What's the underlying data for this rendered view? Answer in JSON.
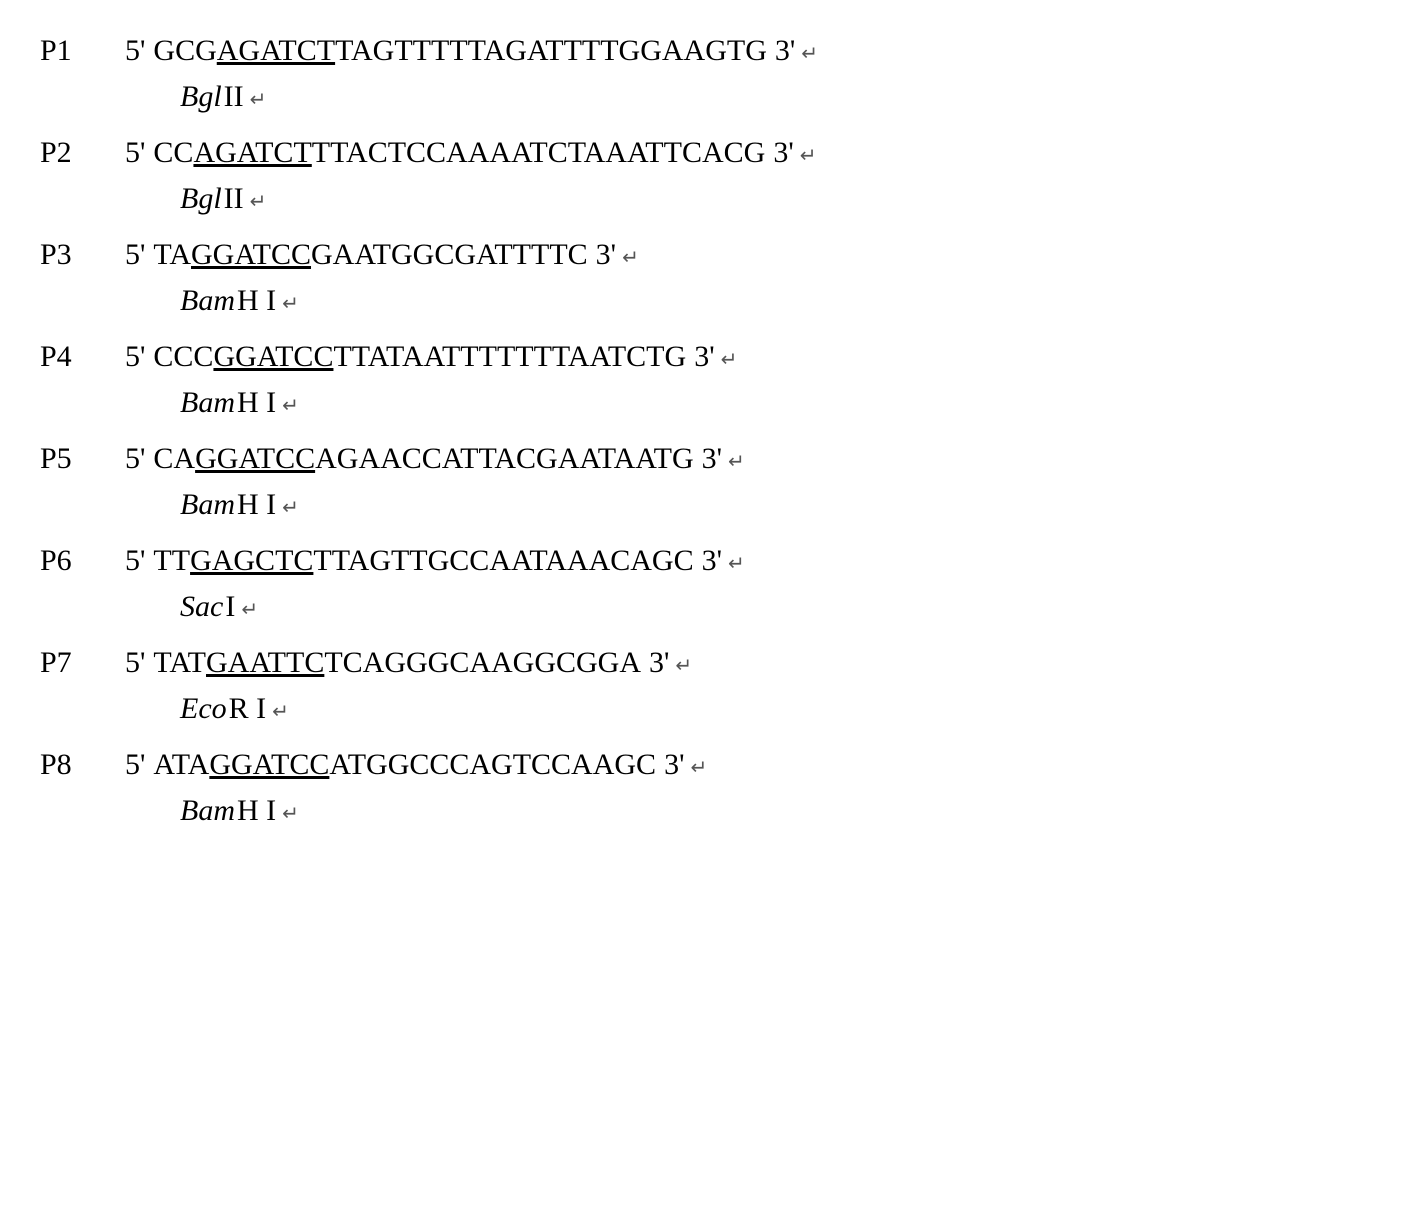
{
  "primers": [
    {
      "label": "P1",
      "five": "5'",
      "three": "3'",
      "pre": "GCG",
      "site": "AGATCT",
      "post": "TAGTTTTTAGATTTTGGAAGTG",
      "enzyme_italic": "Bgl",
      "enzyme_suffix": "II"
    },
    {
      "label": "P2",
      "five": "5'",
      "three": "3'",
      "pre": "CC",
      "site": "AGATCT",
      "post": "TTACTCCAAAATCTAAATTCACG",
      "enzyme_italic": "Bgl",
      "enzyme_suffix": "II"
    },
    {
      "label": "P3",
      "five": "5'",
      "three": "3'",
      "pre": "TA",
      "site": "GGATCC",
      "post": "GAATGGCGATTTTC",
      "enzyme_italic": "Bam",
      "enzyme_suffix": "H I"
    },
    {
      "label": "P4",
      "five": "5'",
      "three": "3'",
      "pre": "CCC",
      "site": "GGATCC",
      "post": "TTATAATTTTTTTAATCTG",
      "enzyme_italic": "Bam",
      "enzyme_suffix": "H I"
    },
    {
      "label": "P5",
      "five": "5'",
      "three": "3'",
      "pre": "CA",
      "site": "GGATCC",
      "post": "AGAACCATTACGAATAATG",
      "enzyme_italic": "Bam",
      "enzyme_suffix": "H I"
    },
    {
      "label": "P6",
      "five": "5'",
      "three": "3'",
      "pre": "TT",
      "site": "GAGCTC",
      "post": "TTAGTTGCCAATAAACAGC",
      "enzyme_italic": "Sac",
      "enzyme_suffix": "I"
    },
    {
      "label": "P7",
      "five": "5'",
      "three": "3'",
      "pre": "TAT",
      "site": "GAATTC",
      "post": "TCAGGGCAAGGCGGA",
      "enzyme_italic": "Eco",
      "enzyme_suffix": "R I"
    },
    {
      "label": "P8",
      "five": "5'",
      "three": "3'",
      "pre": "ATA",
      "site": "GGATCC",
      "post": "ATGGCCCAGTCCAAGC",
      "enzyme_italic": "Bam",
      "enzyme_suffix": "H I"
    }
  ],
  "style": {
    "font_family": "Times New Roman",
    "font_size_pt": 22,
    "text_color": "#000000",
    "background_color": "#ffffff",
    "return_mark": "↵"
  }
}
